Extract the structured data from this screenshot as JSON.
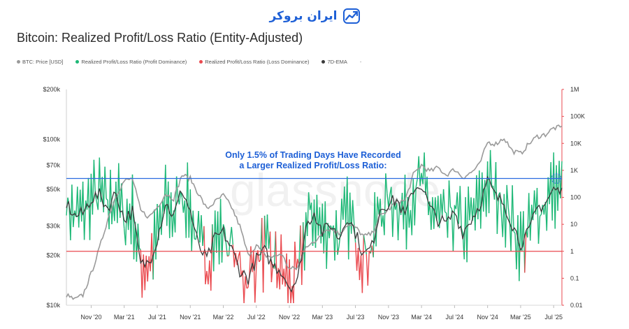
{
  "brand": {
    "name": "ایران بروکر",
    "icon": "trend-chart-logo-icon",
    "color": "#1d5fd6"
  },
  "watermark": "glassnode",
  "chart_data": {
    "type": "line",
    "title": "Bitcoin: Realized Profit/Loss Ratio (Entity-Adjusted)",
    "legend": [
      {
        "name": "BTC: Price [USD]",
        "color": "#9a9a9a"
      },
      {
        "name": "Realized Profit/Loss Ratio (Profit Dominance)",
        "color": "#1db876"
      },
      {
        "name": "Realized Profit/Loss Ratio (Loss Dominance)",
        "color": "#ea4a4f"
      },
      {
        "name": "7D-EMA",
        "color": "#3a3a3a"
      }
    ],
    "legend_extra": "-",
    "legend_position": "top-left",
    "x_ticks": [
      "Nov '20",
      "Mar '21",
      "Jul '21",
      "Nov '21",
      "Mar '22",
      "Jul '22",
      "Nov '22",
      "Mar '23",
      "Jul '23",
      "Nov '23",
      "Mar '24",
      "Jul '24",
      "Nov '24",
      "Mar '25",
      "Jul '25"
    ],
    "left_axis": {
      "scale": "log",
      "ticks": [
        "$10k",
        "$20k",
        "$30k",
        "$50k",
        "$70k",
        "$100k",
        "$200k"
      ],
      "tick_values": [
        10000,
        20000,
        30000,
        50000,
        70000,
        100000,
        200000
      ],
      "range": [
        10000,
        200000
      ]
    },
    "right_axis": {
      "scale": "log",
      "ticks": [
        "0.01",
        "0.1",
        "1",
        "10",
        "100",
        "1K",
        "10K",
        "100K",
        "1M"
      ],
      "tick_values": [
        0.01,
        0.1,
        1,
        10,
        100,
        1000,
        10000,
        100000,
        1000000
      ],
      "range": [
        0.01,
        1000000
      ]
    },
    "grid": false,
    "reference_lines": [
      {
        "axis": "right",
        "value": 1,
        "color": "#ea4a4f"
      },
      {
        "axis": "right",
        "value": 500,
        "color": "#2b6be0"
      }
    ],
    "annotation": [
      "Only 1.5% of Trading Days Have Recorded",
      "a Larger Realized Profit/Loss Ratio:"
    ],
    "btc_price": {
      "dates": [
        "2020-08",
        "2020-09",
        "2020-10",
        "2020-11",
        "2020-12",
        "2021-01",
        "2021-02",
        "2021-03",
        "2021-04",
        "2021-05",
        "2021-06",
        "2021-07",
        "2021-08",
        "2021-09",
        "2021-10",
        "2021-11",
        "2021-12",
        "2022-01",
        "2022-02",
        "2022-03",
        "2022-04",
        "2022-05",
        "2022-06",
        "2022-07",
        "2022-08",
        "2022-09",
        "2022-10",
        "2022-11",
        "2022-12",
        "2023-01",
        "2023-02",
        "2023-03",
        "2023-04",
        "2023-05",
        "2023-06",
        "2023-07",
        "2023-08",
        "2023-09",
        "2023-10",
        "2023-11",
        "2023-12",
        "2024-01",
        "2024-02",
        "2024-03",
        "2024-04",
        "2024-05",
        "2024-06",
        "2024-07",
        "2024-08",
        "2024-09",
        "2024-10",
        "2024-11",
        "2024-12",
        "2025-01",
        "2025-02",
        "2025-03",
        "2025-04",
        "2025-05",
        "2025-06",
        "2025-07",
        "2025-08"
      ],
      "values": [
        11500,
        10800,
        11500,
        15500,
        22000,
        33000,
        46000,
        56000,
        58000,
        37000,
        34000,
        39000,
        47000,
        44000,
        61000,
        58000,
        47000,
        38000,
        42000,
        46000,
        39000,
        30000,
        20000,
        23000,
        20000,
        19500,
        20500,
        16500,
        16800,
        23000,
        23500,
        28000,
        29000,
        27000,
        30500,
        29500,
        26000,
        27000,
        34500,
        37500,
        42500,
        42500,
        61000,
        70000,
        64000,
        67500,
        61000,
        66000,
        59000,
        63000,
        70000,
        96000,
        94000,
        102000,
        85000,
        82000,
        94000,
        104000,
        107000,
        117000,
        118000
      ]
    },
    "ratio_7d_ema": {
      "dates": [
        "2020-08",
        "2020-09",
        "2020-10",
        "2020-11",
        "2020-12",
        "2021-01",
        "2021-02",
        "2021-03",
        "2021-04",
        "2021-05",
        "2021-06",
        "2021-07",
        "2021-08",
        "2021-09",
        "2021-10",
        "2021-11",
        "2021-12",
        "2022-01",
        "2022-02",
        "2022-03",
        "2022-04",
        "2022-05",
        "2022-06",
        "2022-07",
        "2022-08",
        "2022-09",
        "2022-10",
        "2022-11",
        "2022-12",
        "2023-01",
        "2023-02",
        "2023-03",
        "2023-04",
        "2023-05",
        "2023-06",
        "2023-07",
        "2023-08",
        "2023-09",
        "2023-10",
        "2023-11",
        "2023-12",
        "2024-01",
        "2024-02",
        "2024-03",
        "2024-04",
        "2024-05",
        "2024-06",
        "2024-07",
        "2024-08",
        "2024-09",
        "2024-10",
        "2024-11",
        "2024-12",
        "2025-01",
        "2025-02",
        "2025-03",
        "2025-04",
        "2025-05",
        "2025-06",
        "2025-07",
        "2025-08"
      ],
      "values": [
        60,
        20,
        25,
        90,
        120,
        40,
        150,
        15,
        30,
        0.3,
        0.4,
        3,
        60,
        20,
        200,
        30,
        1.5,
        0.5,
        3,
        5,
        1.2,
        0.2,
        0.1,
        0.5,
        1,
        0.3,
        0.2,
        0.05,
        0.08,
        8,
        30,
        5,
        10,
        3,
        20,
        5,
        0.7,
        1.5,
        40,
        60,
        80,
        20,
        200,
        300,
        40,
        15,
        10,
        30,
        5,
        15,
        50,
        400,
        100,
        60,
        10,
        2,
        5,
        40,
        60,
        200,
        150
      ]
    }
  }
}
